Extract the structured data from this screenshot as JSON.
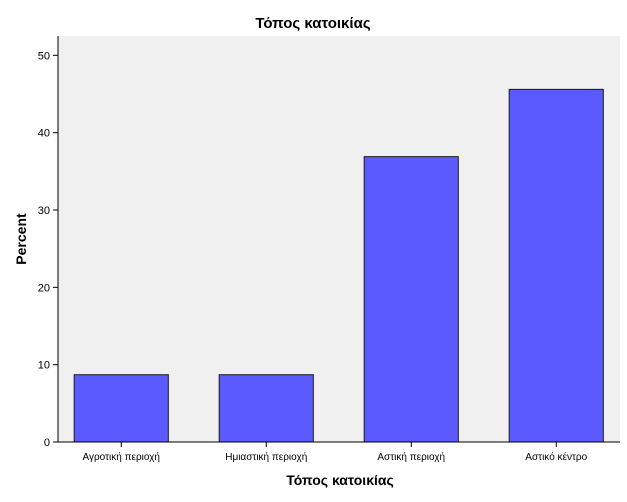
{
  "chart_data": {
    "type": "bar",
    "title": "Τόπος κατοικίας",
    "xlabel": "Τόπος κατοικίας",
    "ylabel": "Percent",
    "categories": [
      "Αγροτική περιοχή",
      "Ημιαστική περιοχή",
      "Αστική περιοχή",
      "Αστικό κέντρο"
    ],
    "values": [
      8.7,
      8.7,
      36.9,
      45.6
    ],
    "ylim": [
      0,
      52.5
    ],
    "yticks": [
      0,
      10,
      20,
      30,
      40,
      50
    ],
    "grid": false,
    "legend": "none",
    "colors": {
      "bar_fill": "#5a5aff",
      "bar_stroke": "#1a1a1a",
      "plot_background": "#f0f0f0",
      "axis": "#000000"
    }
  }
}
